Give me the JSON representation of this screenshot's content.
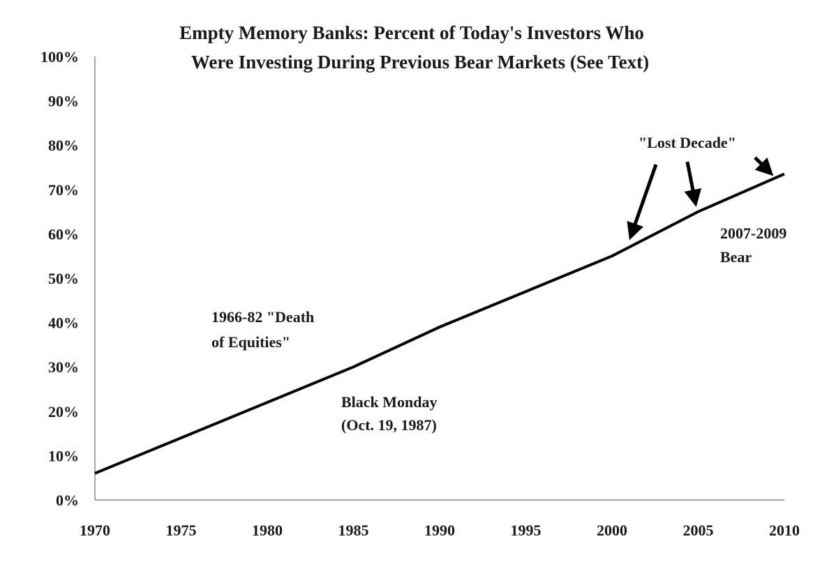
{
  "chart_data": {
    "type": "line",
    "title": "Empty Memory Banks: Percent of Today's Investors Who Were Investing During Previous Bear Markets (See Text)",
    "title_lines": [
      "Empty Memory Banks: Percent of Today's Investors Who",
      "Were Investing During Previous Bear Markets (See Text)"
    ],
    "xlabel": "",
    "ylabel": "",
    "xlim": [
      1970,
      2010
    ],
    "ylim": [
      0,
      100
    ],
    "x_ticks": [
      1970,
      1975,
      1980,
      1985,
      1990,
      1995,
      2000,
      2005,
      2010
    ],
    "y_ticks": [
      0,
      10,
      20,
      30,
      40,
      50,
      60,
      70,
      80,
      90,
      100
    ],
    "y_tick_labels": [
      "0%",
      "10%",
      "20%",
      "30%",
      "40%",
      "50%",
      "60%",
      "70%",
      "80%",
      "90%",
      "100%"
    ],
    "grid": false,
    "legend": "none",
    "line_color": "#000000",
    "series": [
      {
        "x": [
          1970,
          1975,
          1980,
          1985,
          1990,
          1995,
          2000,
          2005,
          2010
        ],
        "values": [
          6,
          14,
          22,
          30,
          39,
          47,
          55,
          65,
          73.5
        ]
      }
    ],
    "annotations": [
      {
        "lines": [
          "1966-82 \"Death",
          "of Equities\""
        ]
      },
      {
        "lines": [
          "Black Monday",
          "(Oct. 19, 1987)"
        ]
      },
      {
        "lines": [
          "2007-2009",
          "Bear"
        ]
      },
      {
        "lines": [
          "\"Lost Decade\""
        ]
      }
    ]
  }
}
